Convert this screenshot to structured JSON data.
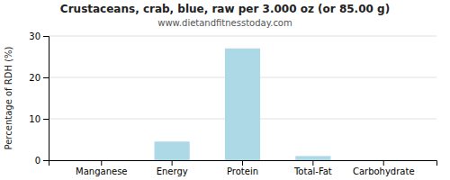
{
  "chart_data": {
    "type": "bar",
    "title": "Crustaceans, crab, blue, raw per 3.000 oz (or 85.00 g)",
    "subtitle": "www.dietandfitnesstoday.com",
    "categories": [
      "Manganese",
      "Energy",
      "Protein",
      "Total-Fat",
      "Carbohydrate"
    ],
    "values": [
      0.0,
      4.5,
      27.0,
      1.0,
      0.0
    ],
    "color": "#add8e6",
    "ylabel": "Percentage of RDH (%)",
    "ylim": [
      0,
      30
    ],
    "yticks": [
      0,
      10,
      20,
      30
    ],
    "grid": true
  }
}
